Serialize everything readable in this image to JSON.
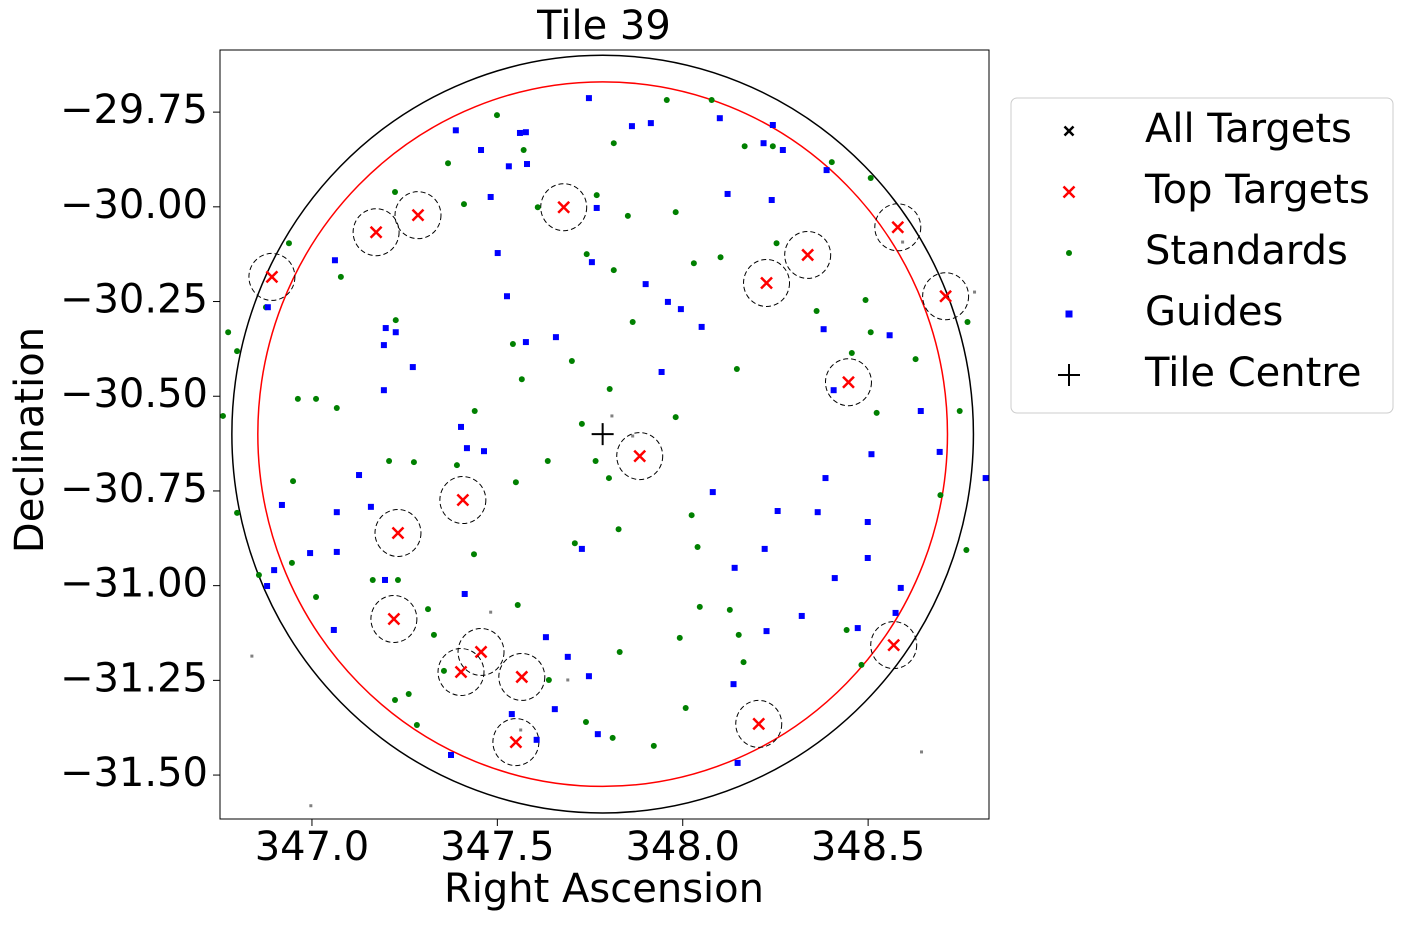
{
  "chart_data": {
    "type": "scatter",
    "title": "Tile 39",
    "x_label": "Right Ascension",
    "y_label": "Declination",
    "xlim": [
      346.752,
      348.826
    ],
    "ylim": [
      -31.616,
      -29.586
    ],
    "xticks": [
      {
        "value": 347.0,
        "label": "347.0"
      },
      {
        "value": 347.5,
        "label": "347.5"
      },
      {
        "value": 348.0,
        "label": "348.0"
      },
      {
        "value": 348.5,
        "label": "348.5"
      }
    ],
    "yticks": [
      {
        "value": -29.75,
        "label": "−29.75"
      },
      {
        "value": -30.0,
        "label": "−30.00"
      },
      {
        "value": -30.25,
        "label": "−30.25"
      },
      {
        "value": -30.5,
        "label": "−30.50"
      },
      {
        "value": -30.75,
        "label": "−30.75"
      },
      {
        "value": -31.0,
        "label": "−31.00"
      },
      {
        "value": -31.25,
        "label": "−31.25"
      },
      {
        "value": -31.5,
        "label": "−31.50"
      }
    ],
    "legend": "upper right outside",
    "circles": [
      {
        "radius": 1.0,
        "color": "black"
      },
      {
        "radius": 0.93,
        "color": "red"
      }
    ],
    "series": [
      {
        "name": "All Targets",
        "marker": "x",
        "color": "#808080",
        "x": [
          347.809,
          347.865,
          347.482,
          347.69,
          347.563,
          346.838,
          346.997,
          348.644,
          348.787,
          348.593
        ],
        "y": [
          -30.552,
          -30.605,
          -31.07,
          -31.249,
          -31.381,
          -31.186,
          -31.581,
          -31.439,
          -30.225,
          -30.093
        ]
      },
      {
        "name": "Top Targets",
        "marker": "x",
        "color": "red",
        "circle_radius": 0.062,
        "x": [
          346.892,
          347.173,
          347.286,
          347.679,
          348.58,
          348.709,
          348.226,
          348.337,
          348.447,
          347.884,
          347.407,
          347.232,
          347.221,
          347.456,
          347.402,
          347.566,
          347.55,
          348.205,
          348.569
        ],
        "y": [
          -30.185,
          -30.067,
          -30.022,
          -30.001,
          -30.054,
          -30.236,
          -30.201,
          -30.127,
          -30.463,
          -30.658,
          -30.774,
          -30.861,
          -31.088,
          -31.175,
          -31.228,
          -31.241,
          -31.413,
          -31.365,
          -31.157
        ]
      },
      {
        "name": "Standards",
        "marker": "o",
        "color": "green",
        "x": [
          347.957,
          348.078,
          347.499,
          347.814,
          347.571,
          347.367,
          348.167,
          348.243,
          348.402,
          348.507,
          347.224,
          347.768,
          347.609,
          347.41,
          347.852,
          347.981,
          346.938,
          347.078,
          348.102,
          348.253,
          347.741,
          347.814,
          348.03,
          348.493,
          348.361,
          348.507,
          347.865,
          347.226,
          346.876,
          346.774,
          346.798,
          347.542,
          348.456,
          348.628,
          347.701,
          347.803,
          347.566,
          348.146,
          346.962,
          347.011,
          347.067,
          346.76,
          347.439,
          347.981,
          348.523,
          348.747,
          347.728,
          347.391,
          347.208,
          347.275,
          347.636,
          347.765,
          347.801,
          347.55,
          346.949,
          346.798,
          348.024,
          347.709,
          347.827,
          348.04,
          347.437,
          348.695,
          348.765,
          346.857,
          346.946,
          347.164,
          347.232,
          347.011,
          347.313,
          347.555,
          348.046,
          348.127,
          348.151,
          347.992,
          347.83,
          347.329,
          348.164,
          348.442,
          348.482,
          347.356,
          347.639,
          347.739,
          347.224,
          347.261,
          347.283,
          347.811,
          347.922,
          348.008,
          348.768
        ],
        "y": [
          -29.718,
          -29.718,
          -29.758,
          -29.832,
          -29.85,
          -29.885,
          -29.84,
          -29.84,
          -29.882,
          -29.924,
          -29.961,
          -29.969,
          -30.001,
          -29.993,
          -30.024,
          -30.014,
          -30.096,
          -30.185,
          -30.133,
          -30.096,
          -30.125,
          -30.167,
          -30.149,
          -30.246,
          -30.275,
          -30.331,
          -30.304,
          -30.299,
          -30.265,
          -30.331,
          -30.381,
          -30.362,
          -30.386,
          -30.402,
          -30.407,
          -30.481,
          -30.455,
          -30.428,
          -30.507,
          -30.507,
          -30.531,
          -30.552,
          -30.539,
          -30.555,
          -30.544,
          -30.539,
          -30.573,
          -30.682,
          -30.671,
          -30.674,
          -30.671,
          -30.671,
          -30.716,
          -30.727,
          -30.724,
          -30.808,
          -30.814,
          -30.888,
          -30.851,
          -30.898,
          -30.917,
          -30.761,
          -30.906,
          -30.972,
          -30.94,
          -30.985,
          -30.985,
          -31.03,
          -31.062,
          -31.051,
          -31.056,
          -31.064,
          -31.13,
          -31.138,
          -31.175,
          -31.13,
          -31.202,
          -31.117,
          -31.209,
          -31.225,
          -31.249,
          -31.36,
          -31.302,
          -31.286,
          -31.368,
          -31.402,
          -31.423,
          -31.323,
          -30.304
        ]
      },
      {
        "name": "Guides",
        "marker": "s",
        "color": "blue",
        "x": [
          347.747,
          347.388,
          347.561,
          347.577,
          347.456,
          347.58,
          347.531,
          347.863,
          347.914,
          348.1,
          348.243,
          348.218,
          348.27,
          348.388,
          347.768,
          347.482,
          348.121,
          348.24,
          347.501,
          347.755,
          347.9,
          347.062,
          347.526,
          347.96,
          347.995,
          348.051,
          348.38,
          348.558,
          346.881,
          347.199,
          347.194,
          347.226,
          347.658,
          347.577,
          347.272,
          347.194,
          347.943,
          348.407,
          347.402,
          347.418,
          347.464,
          348.642,
          348.509,
          348.693,
          347.127,
          347.159,
          346.919,
          347.067,
          348.385,
          348.081,
          348.256,
          348.364,
          348.817,
          347.728,
          348.499,
          348.221,
          348.499,
          346.995,
          347.067,
          346.898,
          346.879,
          348.14,
          348.41,
          348.588,
          348.574,
          347.197,
          347.412,
          347.059,
          348.321,
          348.472,
          348.226,
          347.631,
          347.69,
          347.747,
          348.137,
          347.539,
          347.655,
          347.606,
          347.375,
          348.148,
          347.771
        ],
        "y": [
          -29.713,
          -29.798,
          -29.805,
          -29.803,
          -29.85,
          -29.887,
          -29.893,
          -29.787,
          -29.779,
          -29.766,
          -29.784,
          -29.832,
          -29.85,
          -29.903,
          -30.003,
          -29.974,
          -29.966,
          -29.982,
          -30.122,
          -30.146,
          -30.204,
          -30.141,
          -30.236,
          -30.251,
          -30.27,
          -30.317,
          -30.323,
          -30.339,
          -30.265,
          -30.32,
          -30.365,
          -30.331,
          -30.344,
          -30.357,
          -30.423,
          -30.484,
          -30.436,
          -30.484,
          -30.581,
          -30.637,
          -30.645,
          -30.539,
          -30.653,
          -30.647,
          -30.708,
          -30.792,
          -30.787,
          -30.806,
          -30.716,
          -30.753,
          -30.803,
          -30.806,
          -30.716,
          -30.903,
          -30.832,
          -30.903,
          -30.927,
          -30.914,
          -30.911,
          -30.959,
          -31.001,
          -30.953,
          -30.98,
          -31.006,
          -31.072,
          -30.985,
          -31.022,
          -31.117,
          -31.08,
          -31.112,
          -31.12,
          -31.136,
          -31.188,
          -31.239,
          -31.26,
          -31.339,
          -31.326,
          -31.407,
          -31.447,
          -31.468,
          -31.392
        ]
      },
      {
        "name": "Tile Centre",
        "marker": "+",
        "color": "black",
        "x": [
          347.784
        ],
        "y": [
          -30.6
        ]
      }
    ]
  }
}
